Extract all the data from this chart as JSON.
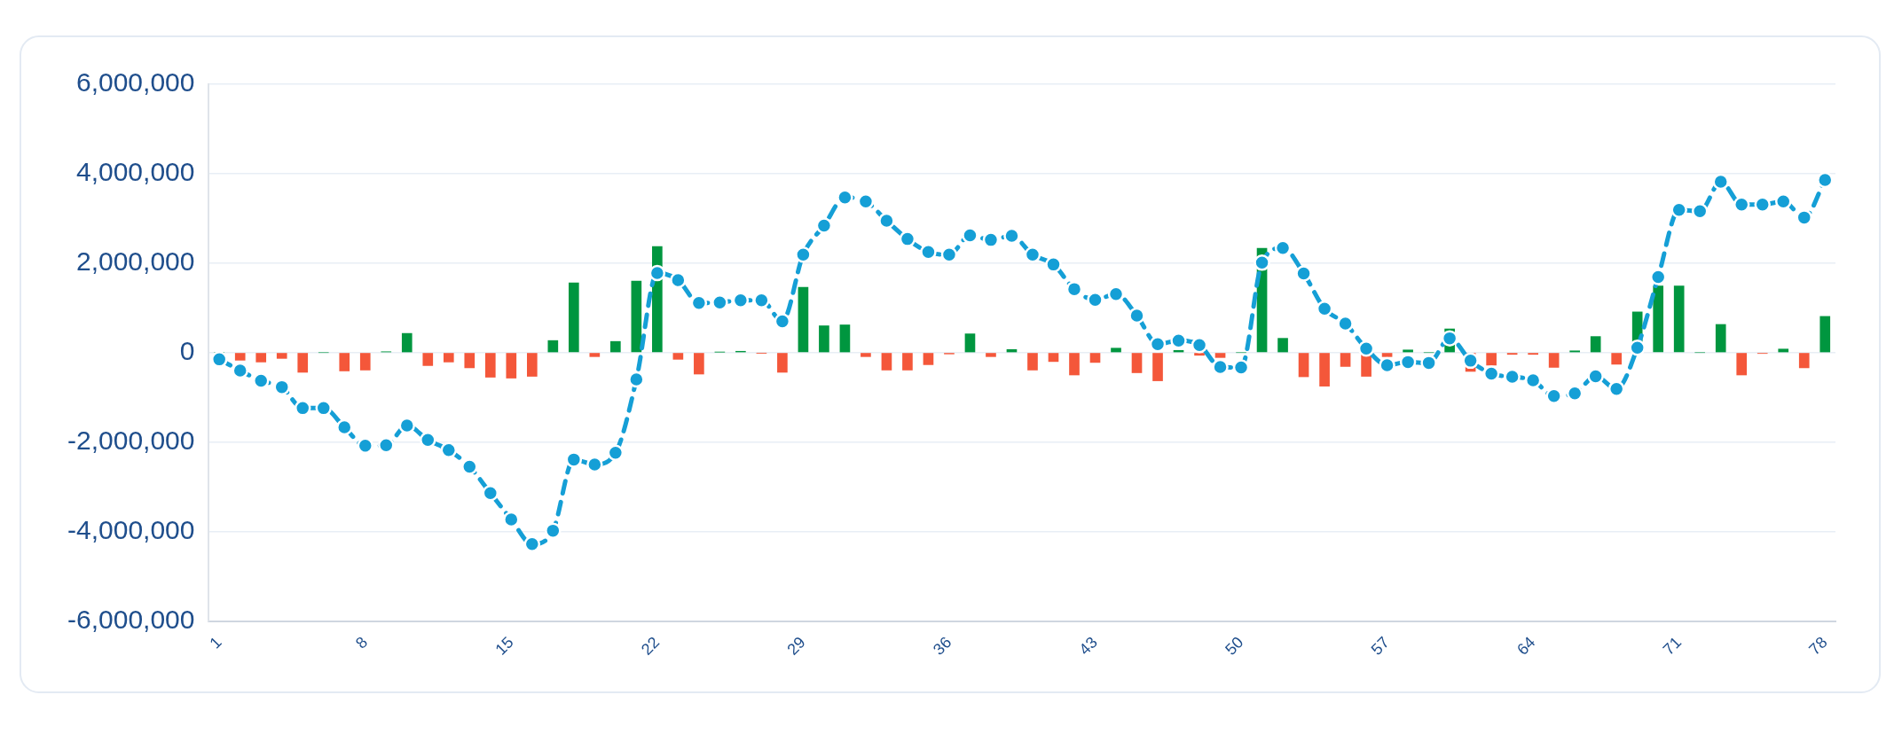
{
  "chart_data": {
    "type": "bar",
    "categories": [
      "1",
      null,
      null,
      null,
      null,
      null,
      null,
      "8",
      null,
      null,
      null,
      null,
      null,
      null,
      "15",
      null,
      null,
      null,
      null,
      null,
      null,
      "22",
      null,
      null,
      null,
      null,
      null,
      null,
      "29",
      null,
      null,
      null,
      null,
      null,
      null,
      "36",
      null,
      null,
      null,
      null,
      null,
      null,
      "43",
      null,
      null,
      null,
      null,
      null,
      null,
      "50",
      null,
      null,
      null,
      null,
      null,
      null,
      "57",
      null,
      null,
      null,
      null,
      null,
      null,
      "64",
      null,
      null,
      null,
      null,
      null,
      null,
      "71",
      null,
      null,
      null,
      null,
      null,
      null,
      "78"
    ],
    "series": [
      {
        "type": "bar",
        "colors": [
          "#00963f",
          "#f4573a",
          "#f4573a",
          "#f4573a",
          "#f4573a",
          "#00963f",
          "#f4573a",
          "#f4573a",
          "#00963f",
          "#00963f",
          "#f4573a",
          "#f4573a",
          "#f4573a",
          "#f4573a",
          "#f4573a",
          "#f4573a",
          "#00963f",
          "#00963f",
          "#f4573a",
          "#00963f",
          "#00963f",
          "#00963f",
          "#f4573a",
          "#f4573a",
          "#00963f",
          "#00963f",
          "#f4573a",
          "#f4573a",
          "#00963f",
          "#00963f",
          "#00963f",
          "#f4573a",
          "#f4573a",
          "#f4573a",
          "#f4573a",
          "#f4573a",
          "#00963f",
          "#f4573a",
          "#00963f",
          "#f4573a",
          "#f4573a",
          "#f4573a",
          "#f4573a",
          "#00963f",
          "#f4573a",
          "#f4573a",
          "#00963f",
          "#f4573a",
          "#f4573a",
          "#00963f",
          "#00963f",
          "#00963f",
          "#f4573a",
          "#f4573a",
          "#f4573a",
          "#f4573a",
          "#f4573a",
          "#00963f",
          "#00963f",
          "#00963f",
          "#f4573a",
          "#f4573a",
          "#f4573a",
          "#f4573a",
          "#f4573a",
          "#00963f",
          "#00963f",
          "#f4573a",
          "#00963f",
          "#00963f",
          "#00963f",
          "#00963f",
          "#00963f",
          "#f4573a",
          "#f4573a",
          "#00963f",
          "#f4573a",
          "#00963f"
        ],
        "values": [
          0,
          -170000,
          -210000,
          -130000,
          -440000,
          0,
          -410000,
          -390000,
          20000,
          430000,
          -290000,
          -210000,
          -340000,
          -550000,
          -570000,
          -530000,
          270000,
          1560000,
          -90000,
          250000,
          1600000,
          2370000,
          -150000,
          -480000,
          10000,
          30000,
          -10000,
          -440000,
          1460000,
          600000,
          620000,
          -90000,
          -390000,
          -390000,
          -270000,
          -30000,
          420000,
          -90000,
          70000,
          -390000,
          -200000,
          -500000,
          -220000,
          100000,
          -450000,
          -630000,
          50000,
          -60000,
          -110000,
          0,
          2330000,
          320000,
          -540000,
          -750000,
          -310000,
          -530000,
          -90000,
          60000,
          0,
          530000,
          -420000,
          -280000,
          -40000,
          -40000,
          -330000,
          40000,
          360000,
          -260000,
          910000,
          1490000,
          1490000,
          0,
          630000,
          -500000,
          -20000,
          80000,
          -340000,
          810000
        ]
      },
      {
        "type": "line",
        "color": "#159fd6",
        "marker": "circle",
        "line_style": "dashed",
        "values": [
          -150000,
          -400000,
          -630000,
          -770000,
          -1240000,
          -1240000,
          -1670000,
          -2080000,
          -2070000,
          -1630000,
          -1950000,
          -2180000,
          -2550000,
          -3140000,
          -3730000,
          -4280000,
          -3980000,
          -2390000,
          -2500000,
          -2240000,
          -600000,
          1780000,
          1620000,
          1110000,
          1120000,
          1170000,
          1170000,
          700000,
          2190000,
          2840000,
          3470000,
          3380000,
          2950000,
          2540000,
          2250000,
          2190000,
          2620000,
          2520000,
          2610000,
          2190000,
          1970000,
          1420000,
          1180000,
          1310000,
          830000,
          190000,
          270000,
          170000,
          -320000,
          -330000,
          2010000,
          2340000,
          1770000,
          980000,
          650000,
          90000,
          -280000,
          -210000,
          -230000,
          320000,
          -180000,
          -470000,
          -540000,
          -620000,
          -970000,
          -910000,
          -530000,
          -810000,
          110000,
          1690000,
          3190000,
          3160000,
          3820000,
          3310000,
          3310000,
          3380000,
          3020000,
          3860000
        ]
      }
    ],
    "ylim": [
      -6000000,
      6000000
    ],
    "yticks": [
      {
        "value": -6000000,
        "label": "-6,000,000"
      },
      {
        "value": -4000000,
        "label": "-4,000,000"
      },
      {
        "value": -2000000,
        "label": "-2,000,000"
      },
      {
        "value": 0,
        "label": "0"
      },
      {
        "value": 2000000,
        "label": "2,000,000"
      },
      {
        "value": 4000000,
        "label": "4,000,000"
      },
      {
        "value": 6000000,
        "label": "6,000,000"
      }
    ],
    "grid": "y"
  }
}
